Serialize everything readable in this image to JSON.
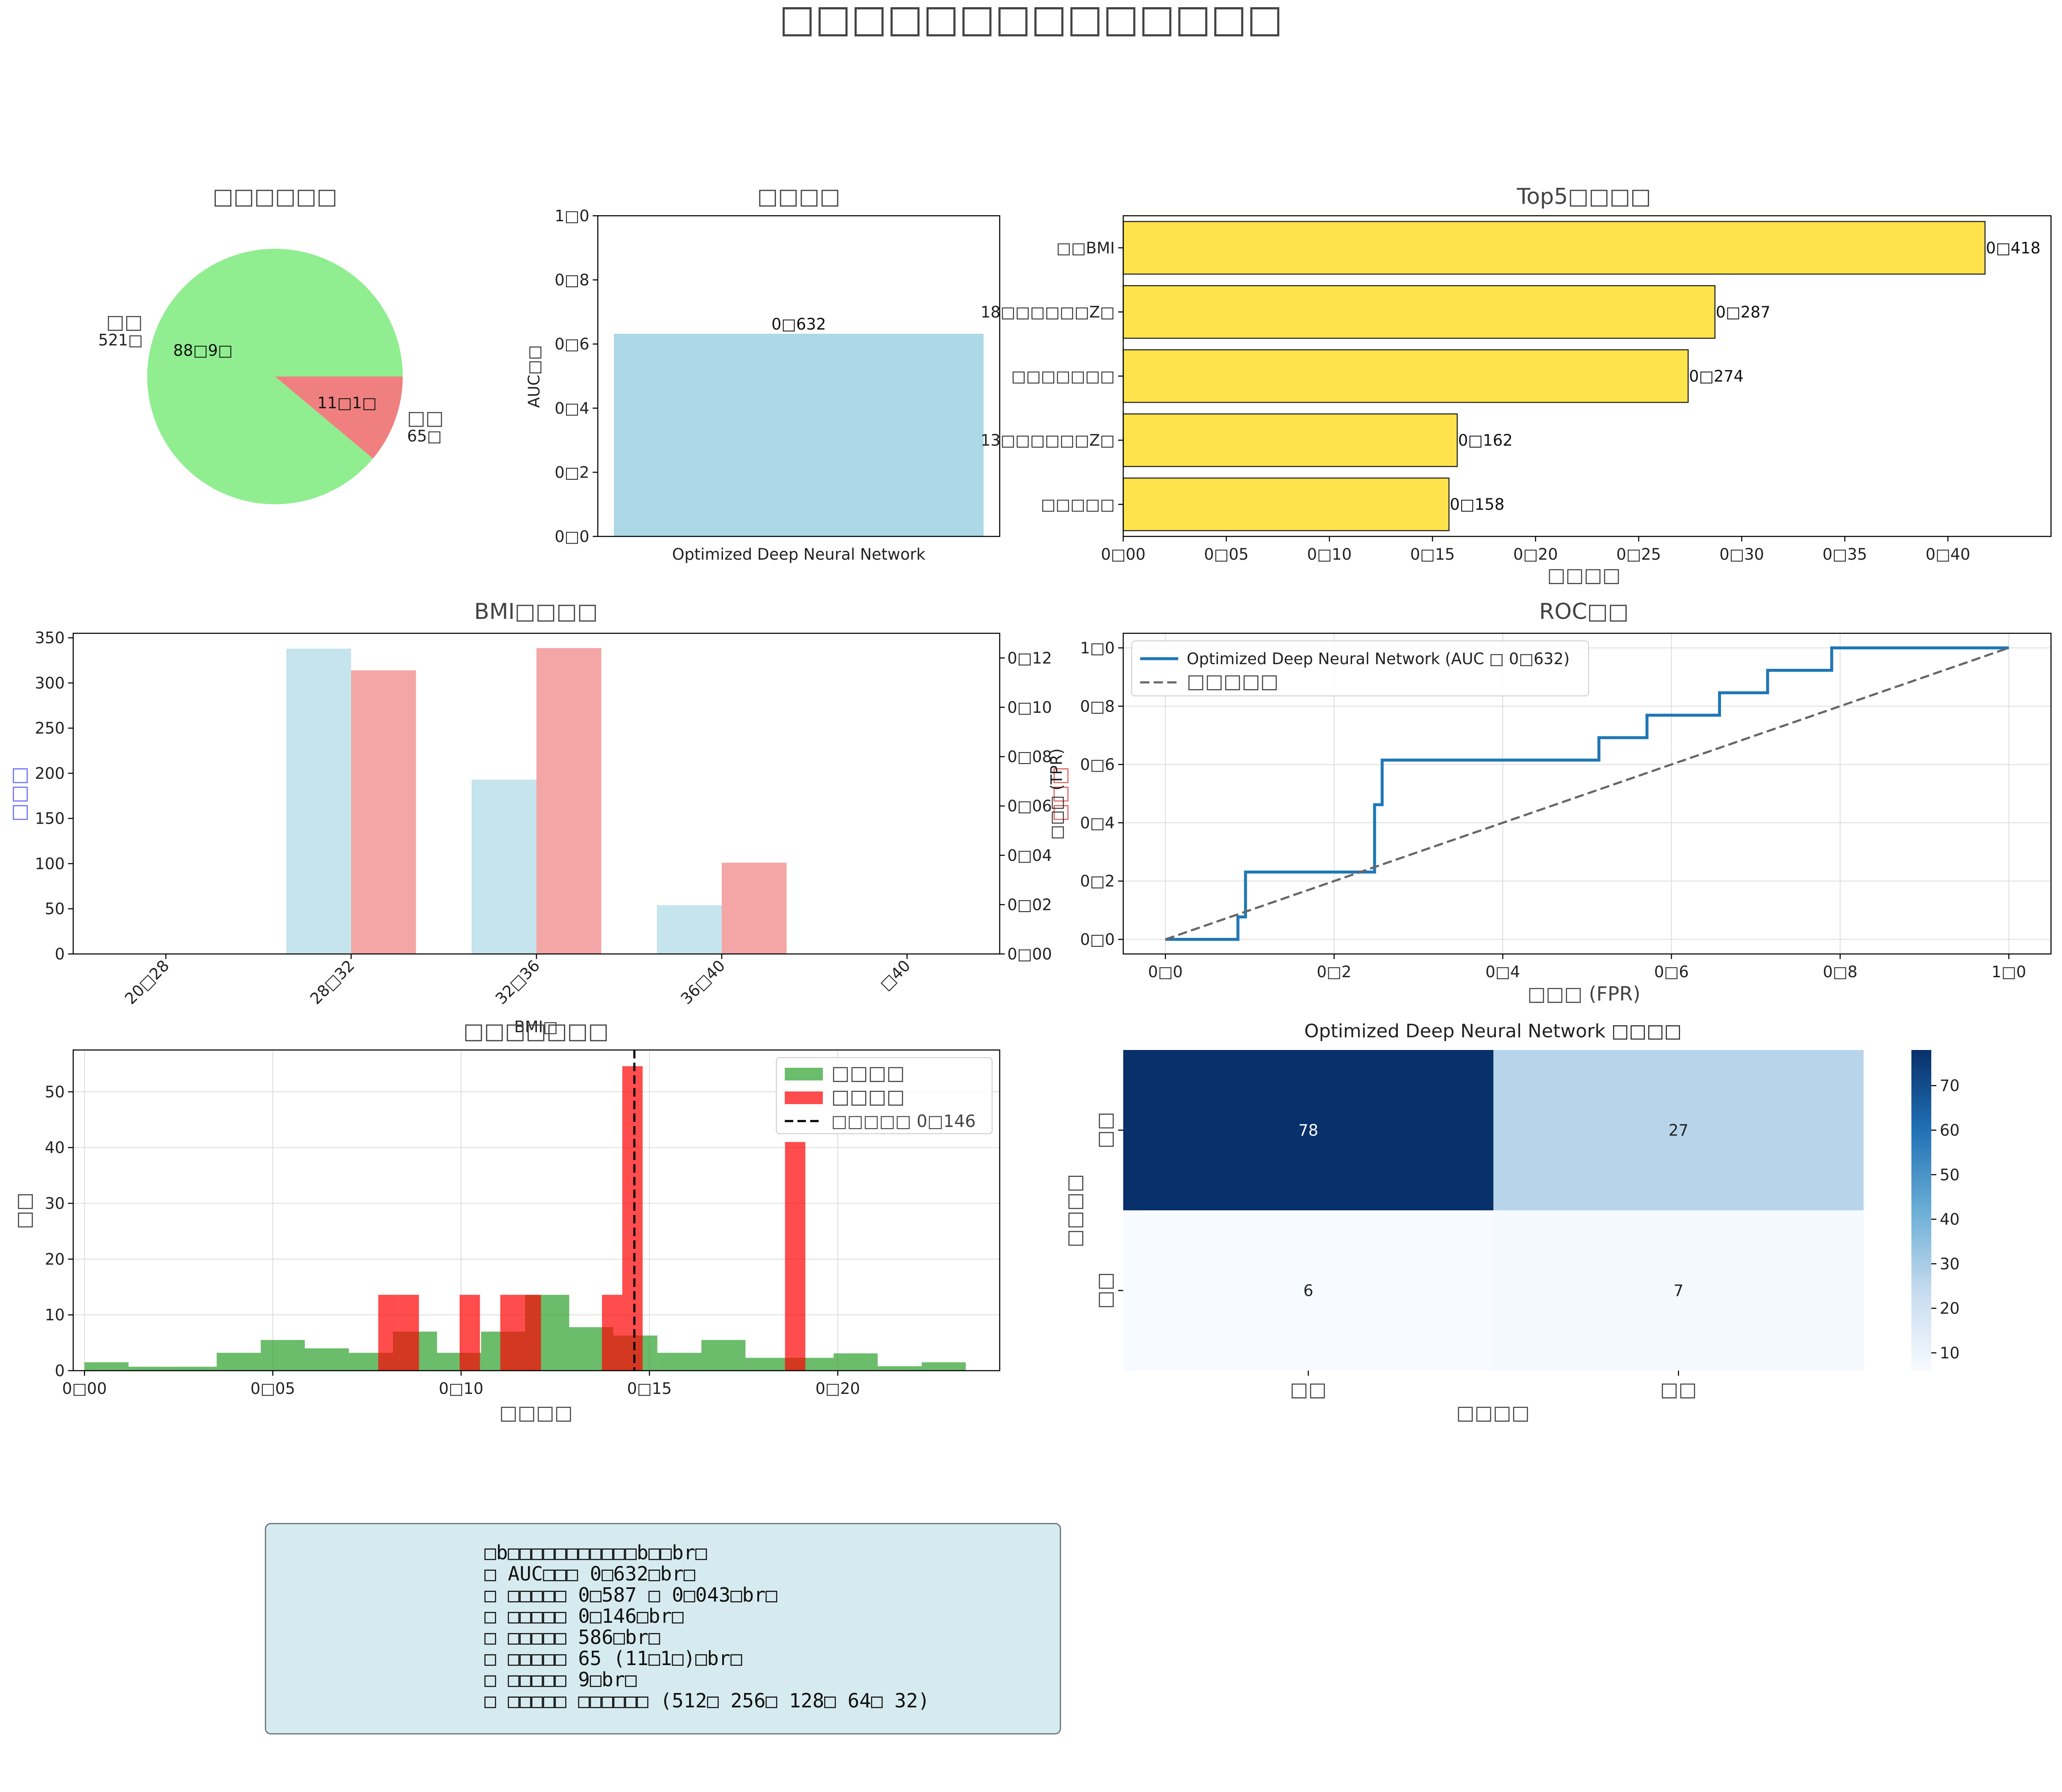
{
  "suptitle": "□□□□□□□□□□□□□□",
  "colors": {
    "normal": "#90ee90",
    "abnormal": "#f08080",
    "light_blue": "#add8e6",
    "gold": "#ffd700",
    "roc_line": "#1f77b4",
    "hist_normal": "#2ca02c",
    "hist_abnormal": "#ff0000",
    "cm_dark": "#08306b",
    "cm_light": "#f7fbff"
  },
  "summary": {
    "lines": [
      "□b□□□□□□□□□□□b□□br□",
      "□ AUC□□□ 0□632□br□",
      "□ □□□□□ 0□587 □ 0□043□br□",
      "□ □□□□□ 0□146□br□",
      "□ □□□□□ 586□br□",
      "□ □□□□□ 65 (11□1□)□br□",
      "□ □□□□□ 9□br□",
      "□ □□□□□ □□□□□□ (512□ 256□ 128□ 64□ 32)"
    ]
  },
  "chart_data": [
    {
      "type": "pie",
      "title": "□□□□□□",
      "slices": [
        {
          "label": "□□",
          "count_label": "521□",
          "pct_label": "88□9□",
          "value": 88.9,
          "color": "#90ee90"
        },
        {
          "label": "□□",
          "count_label": "65□",
          "pct_label": "11□1□",
          "value": 11.1,
          "color": "#f08080"
        }
      ]
    },
    {
      "type": "bar",
      "title": "□□□□",
      "categories": [
        "Optimized Deep Neural Network"
      ],
      "values": [
        0.632
      ],
      "value_labels": [
        "0□632"
      ],
      "ylabel": "AUC□□",
      "ylim": [
        0,
        1.0
      ],
      "yticks": [
        0,
        0.2,
        0.4,
        0.6,
        0.8,
        1.0
      ],
      "ytick_labels": [
        "0□0",
        "0□2",
        "0□4",
        "0□6",
        "0□8",
        "1□0"
      ],
      "color": "#add8e6"
    },
    {
      "type": "bar",
      "orientation": "horizontal",
      "title": "Top5□□□□",
      "categories": [
        "□□BMI",
        "18□□□□□□Z□",
        "□□□□□□□",
        "13□□□□□□Z□",
        "□□□□□"
      ],
      "values": [
        0.418,
        0.287,
        0.274,
        0.162,
        0.158
      ],
      "value_labels": [
        "0□418",
        "0□287",
        "0□274",
        "0□162",
        "0□158"
      ],
      "xlabel": "□□□□",
      "xlim": [
        0,
        0.45
      ],
      "xticks": [
        0,
        0.05,
        0.1,
        0.15,
        0.2,
        0.25,
        0.3,
        0.35,
        0.4
      ],
      "xtick_labels": [
        "0□00",
        "0□05",
        "0□10",
        "0□15",
        "0□20",
        "0□25",
        "0□30",
        "0□35",
        "0□40"
      ],
      "color": "#ffd700"
    },
    {
      "type": "bar",
      "title": "BMI□□□□",
      "categories": [
        "20□28",
        "28□32",
        "32□36",
        "36□40",
        "□40"
      ],
      "xlabel": "BMI□",
      "ylabel": "□□□",
      "ylabel_right": "□□□",
      "series": [
        {
          "axis": "left",
          "values": [
            0,
            338,
            193,
            54,
            0
          ],
          "color": "#add8e6"
        },
        {
          "axis": "right",
          "values": [
            0,
            0.115,
            0.124,
            0.037,
            0
          ],
          "color": "#f08080"
        }
      ],
      "ylim": [
        0,
        355
      ],
      "yticks": [
        0,
        50,
        100,
        150,
        200,
        250,
        300,
        350
      ],
      "ytick_labels": [
        "0",
        "50",
        "100",
        "150",
        "200",
        "250",
        "300",
        "350"
      ],
      "ylim_right": [
        0,
        0.13
      ],
      "yticks_right": [
        0,
        0.02,
        0.04,
        0.06,
        0.08,
        0.1,
        0.12
      ],
      "ytick_labels_right": [
        "0□00",
        "0□02",
        "0□04",
        "0□06",
        "0□08",
        "0□10",
        "0□12"
      ]
    },
    {
      "type": "line",
      "title": "ROC□□",
      "xlabel": "□□□ (FPR)",
      "ylabel": "□□□ (TPR)",
      "xlim": [
        0,
        1
      ],
      "ylim": [
        0,
        1
      ],
      "ticks": [
        0,
        0.2,
        0.4,
        0.6,
        0.8,
        1.0
      ],
      "tick_labels": [
        "0□0",
        "0□2",
        "0□4",
        "0□6",
        "0□8",
        "1□0"
      ],
      "grid": true,
      "legend_position": "top-left",
      "series": [
        {
          "name": "Optimized Deep Neural Network (AUC □ 0□632)",
          "style": "solid",
          "color": "#1f77b4",
          "x": [
            0,
            0.086,
            0.086,
            0.095,
            0.095,
            0.248,
            0.248,
            0.257,
            0.257,
            0.514,
            0.514,
            0.571,
            0.571,
            0.657,
            0.657,
            0.714,
            0.714,
            0.79,
            0.79,
            1.0
          ],
          "y": [
            0,
            0,
            0.077,
            0.077,
            0.231,
            0.231,
            0.462,
            0.462,
            0.615,
            0.615,
            0.692,
            0.692,
            0.769,
            0.769,
            0.846,
            0.846,
            0.923,
            0.923,
            1.0,
            1.0
          ]
        },
        {
          "name": "□□□□□",
          "style": "dashed",
          "color": "#666666",
          "x": [
            0,
            1
          ],
          "y": [
            0,
            1
          ]
        }
      ]
    },
    {
      "type": "bar",
      "subtype": "histogram",
      "title": "□□□□□□□",
      "xlabel": "□□□□",
      "ylabel": "□□",
      "xlim": [
        -0.003,
        0.243
      ],
      "ylim": [
        0,
        57.5
      ],
      "xticks": [
        0,
        0.05,
        0.1,
        0.15,
        0.2
      ],
      "xtick_labels": [
        "0□00",
        "0□05",
        "0□10",
        "0□15",
        "0□20"
      ],
      "yticks": [
        0,
        10,
        20,
        30,
        40,
        50
      ],
      "grid": true,
      "legend_position": "top-right",
      "vline": {
        "x": 0.146,
        "label": "□□□□□ 0□146"
      },
      "series": [
        {
          "name": "□□□□",
          "color": "#2ca02c",
          "bin_width": 0.0117,
          "bin_starts": [
            0.0,
            0.0117,
            0.0234,
            0.0351,
            0.0468,
            0.0585,
            0.0702,
            0.0819,
            0.0936,
            0.1053,
            0.117,
            0.1287,
            0.1404,
            0.1521,
            0.1638,
            0.1755,
            0.1872,
            0.1989,
            0.2106,
            0.2223
          ],
          "values": [
            1.5,
            0.7,
            0.7,
            3.2,
            5.5,
            4.0,
            3.2,
            7.0,
            3.2,
            7.0,
            13.6,
            7.8,
            6.3,
            3.2,
            5.5,
            2.3,
            2.3,
            3.1,
            0.8,
            1.5
          ]
        },
        {
          "name": "□□□□",
          "color": "#ff0000",
          "bin_width": 0.0054,
          "bin_starts": [
            0.078,
            0.0834,
            0.0888,
            0.0942,
            0.0996,
            0.105,
            0.1104,
            0.1158,
            0.1212,
            0.1266,
            0.132,
            0.1374,
            0.1428,
            0.1482,
            0.1536,
            0.159,
            0.1644,
            0.1698,
            0.1752,
            0.1806,
            0.186,
            0.1914
          ],
          "values": [
            13.6,
            13.6,
            0,
            0,
            13.6,
            0,
            13.6,
            13.6,
            0,
            0,
            0,
            13.6,
            54.6,
            0,
            0,
            0,
            0,
            0,
            0,
            0,
            41.0,
            0
          ]
        }
      ]
    },
    {
      "type": "heatmap",
      "title": "Optimized Deep Neural Network □□□□",
      "xlabel": "□□□□",
      "ylabel": "□□□□",
      "x_categories": [
        "□□",
        "□□"
      ],
      "y_categories": [
        "□□",
        "□□"
      ],
      "values": [
        [
          78,
          27
        ],
        [
          6,
          7
        ]
      ],
      "colorbar": {
        "min": 6,
        "max": 78,
        "ticks": [
          10,
          20,
          30,
          40,
          50,
          60,
          70
        ]
      }
    }
  ]
}
